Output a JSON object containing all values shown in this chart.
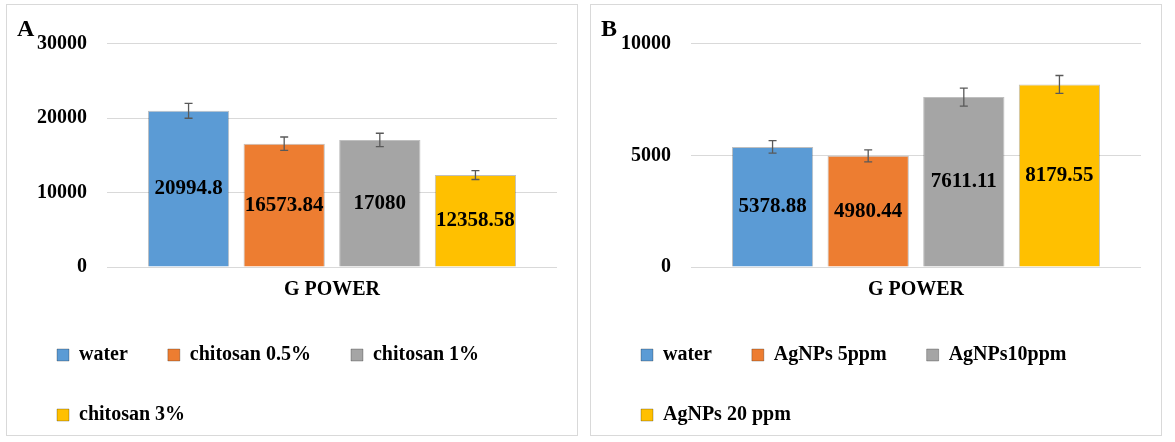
{
  "chart_data": [
    {
      "type": "bar",
      "title": "A",
      "categories": [
        "G POWER"
      ],
      "ylim": [
        0,
        30000
      ],
      "yticks": [
        0,
        10000,
        20000,
        30000
      ],
      "grid": "y",
      "legend": "bottom",
      "data_labels": true,
      "series": [
        {
          "name": "water",
          "color": "#5b9bd5",
          "values": [
            20994.8
          ],
          "errors": [
            1000
          ]
        },
        {
          "name": "chitosan 0.5%",
          "color": "#ed7d31",
          "values": [
            16573.84
          ],
          "errors": [
            900
          ]
        },
        {
          "name": "chitosan 1%",
          "color": "#a5a5a5",
          "values": [
            17080
          ],
          "errors": [
            900
          ]
        },
        {
          "name": "chitosan 3%",
          "color": "#ffc000",
          "values": [
            12358.58
          ],
          "errors": [
            600
          ]
        }
      ]
    },
    {
      "type": "bar",
      "title": "B",
      "categories": [
        "G POWER"
      ],
      "ylim": [
        0,
        10000
      ],
      "yticks": [
        0,
        5000,
        10000
      ],
      "grid": "y",
      "legend": "bottom",
      "data_labels": true,
      "series": [
        {
          "name": "water",
          "color": "#5b9bd5",
          "values": [
            5378.88
          ],
          "errors": [
            280
          ]
        },
        {
          "name": "AgNPs 5ppm",
          "color": "#ed7d31",
          "values": [
            4980.44
          ],
          "errors": [
            270
          ]
        },
        {
          "name": "AgNPs10ppm",
          "color": "#a5a5a5",
          "values": [
            7611.11
          ],
          "errors": [
            400
          ]
        },
        {
          "name": "AgNPs 20 ppm",
          "color": "#ffc000",
          "values": [
            8179.55
          ],
          "errors": [
            400
          ]
        }
      ]
    }
  ]
}
